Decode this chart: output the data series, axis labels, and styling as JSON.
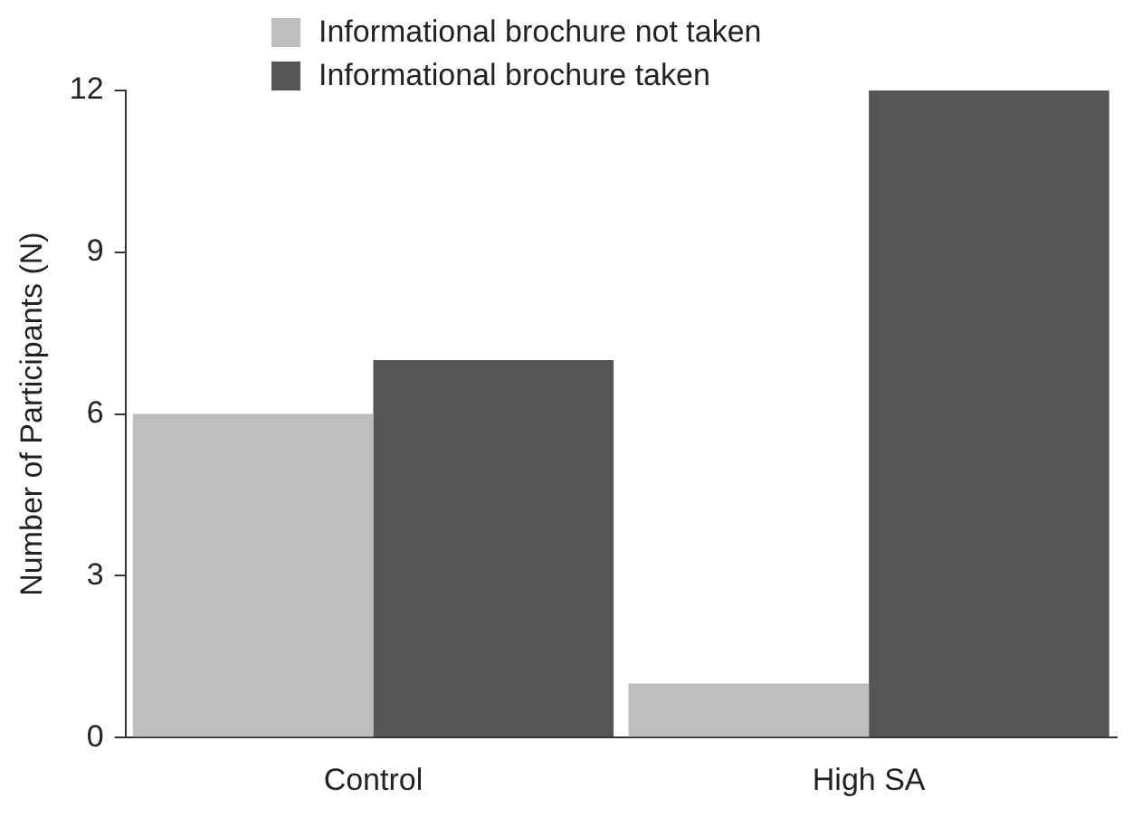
{
  "chart_data": {
    "type": "bar",
    "ylabel": "Number of Participants (N)",
    "categories": [
      "Control",
      "High SA"
    ],
    "series": [
      {
        "name": "Informational brochure not taken",
        "color": "#bdbdbd",
        "values": [
          6,
          1
        ]
      },
      {
        "name": "Informational brochure taken",
        "color": "#555555",
        "values": [
          7,
          12
        ]
      }
    ],
    "ylim": [
      0,
      12
    ],
    "yticks": [
      0,
      3,
      6,
      9,
      12
    ],
    "grid": false,
    "legend": "top left"
  }
}
